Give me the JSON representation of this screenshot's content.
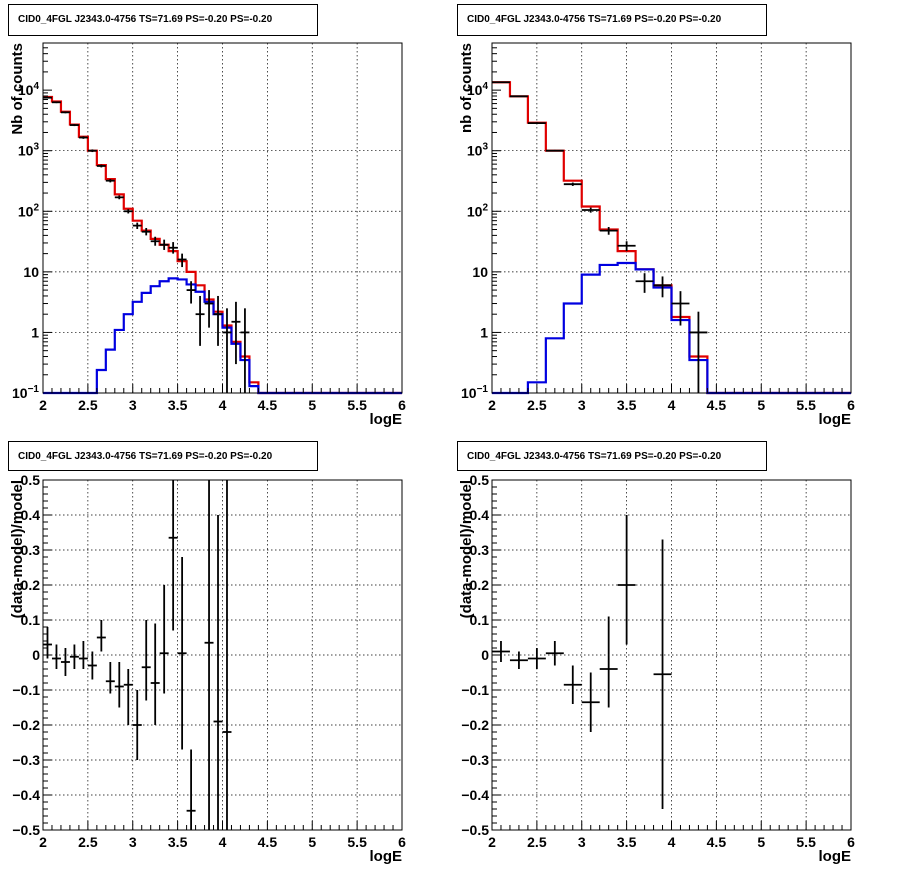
{
  "panels": [
    {
      "title": "CID0_4FGL J2343.0-4756 TS=71.69 PS=-0.20 PS=-0.20",
      "chart_data": {
        "type": "histogram-log",
        "xlabel": "logE",
        "ylabel": "Nb of counts",
        "xlim": [
          2,
          6
        ],
        "ylim": [
          0.1,
          60000
        ],
        "ylog": true,
        "grid": true,
        "x_ticks": [
          "2",
          "2.5",
          "3",
          "3.5",
          "4",
          "4.5",
          "5",
          "5.5",
          "6"
        ],
        "y_ticks": [
          {
            "value": 0.1,
            "label": "10",
            "sup": "−1"
          },
          {
            "value": 1,
            "label": "1"
          },
          {
            "value": 10,
            "label": "10"
          },
          {
            "value": 100,
            "label": "10",
            "sup": "2"
          },
          {
            "value": 1000,
            "label": "10",
            "sup": "3"
          },
          {
            "value": 10000,
            "label": "10",
            "sup": "4"
          }
        ],
        "bin_edges": [
          2.0,
          2.1,
          2.2,
          2.3,
          2.4,
          2.5,
          2.6,
          2.7,
          2.8,
          2.9,
          3.0,
          3.1,
          3.2,
          3.3,
          3.4,
          3.5,
          3.6,
          3.7,
          3.8,
          3.9,
          4.0,
          4.1,
          4.2,
          4.3,
          4.4,
          4.5,
          4.6,
          4.7,
          4.8,
          4.9,
          5.0,
          5.1,
          5.2,
          5.3,
          5.4,
          5.5,
          5.6,
          5.7,
          5.8,
          5.9,
          6.0
        ],
        "series": [
          {
            "color": "#e00000",
            "values": [
              7700,
              6500,
              4400,
              2700,
              1700,
              1000,
              580,
              340,
              190,
              110,
              70,
              48,
              35,
              28,
              22,
              15,
              10,
              6,
              3.5,
              2.2,
              1.3,
              0.7,
              0.4,
              0.15,
              0.1,
              0.1,
              0.1,
              0.1,
              0.1,
              0.1,
              0.1,
              0.1,
              0.1,
              0.1,
              0.1,
              0.1,
              0.1,
              0.1,
              0.1,
              0.1
            ]
          },
          {
            "color": "#0000e0",
            "values": [
              0.1,
              0.1,
              0.1,
              0.1,
              0.1,
              0.1,
              0.24,
              0.52,
              1.1,
              2.0,
              3.2,
              4.5,
              5.8,
              7.0,
              7.8,
              7.5,
              6.2,
              4.7,
              3.2,
              2.0,
              1.2,
              0.65,
              0.35,
              0.13,
              0.1,
              0.1,
              0.1,
              0.1,
              0.1,
              0.1,
              0.1,
              0.1,
              0.1,
              0.1,
              0.1,
              0.1,
              0.1,
              0.1,
              0.1,
              0.1
            ]
          }
        ],
        "points": [
          {
            "x": 2.05,
            "y": 7500,
            "lo": 7300,
            "hi": 7700
          },
          {
            "x": 2.15,
            "y": 6300,
            "lo": 6100,
            "hi": 6500
          },
          {
            "x": 2.25,
            "y": 4300,
            "lo": 4150,
            "hi": 4450
          },
          {
            "x": 2.35,
            "y": 2650,
            "lo": 2550,
            "hi": 2750
          },
          {
            "x": 2.45,
            "y": 1650,
            "lo": 1570,
            "hi": 1730
          },
          {
            "x": 2.55,
            "y": 1000,
            "lo": 950,
            "hi": 1050
          },
          {
            "x": 2.65,
            "y": 560,
            "lo": 530,
            "hi": 590
          },
          {
            "x": 2.75,
            "y": 320,
            "lo": 300,
            "hi": 340
          },
          {
            "x": 2.85,
            "y": 170,
            "lo": 158,
            "hi": 182
          },
          {
            "x": 2.95,
            "y": 100,
            "lo": 92,
            "hi": 108
          },
          {
            "x": 3.05,
            "y": 58,
            "lo": 51,
            "hi": 65
          },
          {
            "x": 3.15,
            "y": 46,
            "lo": 40,
            "hi": 53
          },
          {
            "x": 3.25,
            "y": 32,
            "lo": 27,
            "hi": 38
          },
          {
            "x": 3.35,
            "y": 28,
            "lo": 23,
            "hi": 34
          },
          {
            "x": 3.45,
            "y": 25,
            "lo": 20,
            "hi": 31
          },
          {
            "x": 3.55,
            "y": 16,
            "lo": 12,
            "hi": 20
          },
          {
            "x": 3.65,
            "y": 5,
            "lo": 3,
            "hi": 7
          },
          {
            "x": 3.75,
            "y": 2,
            "lo": 0.6,
            "hi": 4
          },
          {
            "x": 3.85,
            "y": 3,
            "lo": 1.2,
            "hi": 5
          },
          {
            "x": 3.95,
            "y": 2,
            "lo": 0.6,
            "hi": 4
          },
          {
            "x": 4.05,
            "y": 1,
            "lo": 0.1,
            "hi": 2.5
          },
          {
            "x": 4.15,
            "y": 1.5,
            "lo": 0.3,
            "hi": 3.2
          },
          {
            "x": 4.25,
            "y": 1,
            "lo": 0.1,
            "hi": 2.5
          }
        ]
      }
    },
    {
      "title": "CID0_4FGL J2343.0-4756 TS=71.69 PS=-0.20 PS=-0.20",
      "chart_data": {
        "type": "histogram-log",
        "xlabel": "logE",
        "ylabel": "nb of counts",
        "xlim": [
          2,
          6
        ],
        "ylim": [
          0.1,
          60000
        ],
        "ylog": true,
        "grid": true,
        "x_ticks": [
          "2",
          "2.5",
          "3",
          "3.5",
          "4",
          "4.5",
          "5",
          "5.5",
          "6"
        ],
        "y_ticks": [
          {
            "value": 0.1,
            "label": "10",
            "sup": "−1"
          },
          {
            "value": 1,
            "label": "1"
          },
          {
            "value": 10,
            "label": "10"
          },
          {
            "value": 100,
            "label": "10",
            "sup": "2"
          },
          {
            "value": 1000,
            "label": "10",
            "sup": "3"
          },
          {
            "value": 10000,
            "label": "10",
            "sup": "4"
          }
        ],
        "bin_edges": [
          2.0,
          2.2,
          2.4,
          2.6,
          2.8,
          3.0,
          3.2,
          3.4,
          3.6,
          3.8,
          4.0,
          4.2,
          4.4,
          4.6,
          4.8,
          5.0,
          5.2,
          5.4,
          5.6,
          5.8,
          6.0
        ],
        "series": [
          {
            "color": "#e00000",
            "values": [
              13500,
              7900,
              2900,
              1000,
              320,
              120,
              50,
              22,
              11,
              6,
              1.8,
              0.4,
              0.1,
              0.1,
              0.1,
              0.1,
              0.1,
              0.1,
              0.1,
              0.1
            ]
          },
          {
            "color": "#0000e0",
            "values": [
              0.1,
              0.1,
              0.15,
              0.8,
              3,
              9,
              13,
              14,
              11,
              5.5,
              1.6,
              0.35,
              0.1,
              0.1,
              0.1,
              0.1,
              0.1,
              0.1,
              0.1,
              0.1
            ]
          }
        ],
        "points": [
          {
            "x": 2.1,
            "y": 13500,
            "lo": 13300,
            "hi": 13700
          },
          {
            "x": 2.3,
            "y": 7900,
            "lo": 7750,
            "hi": 8050
          },
          {
            "x": 2.5,
            "y": 2850,
            "lo": 2750,
            "hi": 2950
          },
          {
            "x": 2.7,
            "y": 1000,
            "lo": 970,
            "hi": 1030
          },
          {
            "x": 2.9,
            "y": 280,
            "lo": 262,
            "hi": 298
          },
          {
            "x": 3.1,
            "y": 105,
            "lo": 95,
            "hi": 115
          },
          {
            "x": 3.3,
            "y": 48,
            "lo": 41,
            "hi": 55
          },
          {
            "x": 3.5,
            "y": 27,
            "lo": 22,
            "hi": 32
          },
          {
            "x": 3.7,
            "y": 7,
            "lo": 4.5,
            "hi": 9.5
          },
          {
            "x": 3.9,
            "y": 6,
            "lo": 3.8,
            "hi": 8.4
          },
          {
            "x": 4.1,
            "y": 3,
            "lo": 1.3,
            "hi": 4.8
          },
          {
            "x": 4.3,
            "y": 1,
            "lo": 0.1,
            "hi": 2.2
          }
        ]
      }
    },
    {
      "title": "CID0_4FGL J2343.0-4756 TS=71.69 PS=-0.20 PS=-0.20",
      "chart_data": {
        "type": "scatter-errorbars",
        "xlabel": "logE",
        "ylabel": "(data-model)/model",
        "xlim": [
          2,
          6
        ],
        "ylim": [
          -0.5,
          0.5
        ],
        "grid": true,
        "x_ticks": [
          "2",
          "2.5",
          "3",
          "3.5",
          "4",
          "4.5",
          "5",
          "5.5",
          "6"
        ],
        "y_ticks": [
          "−0.5",
          "−0.4",
          "−0.3",
          "−0.2",
          "−0.1",
          "0",
          "0.1",
          "0.2",
          "0.3",
          "0.4",
          "0.5"
        ],
        "points": [
          {
            "x": 2.05,
            "y": 0.03,
            "lo": -0.01,
            "hi": 0.08
          },
          {
            "x": 2.15,
            "y": -0.01,
            "lo": -0.04,
            "hi": 0.03
          },
          {
            "x": 2.25,
            "y": -0.02,
            "lo": -0.06,
            "hi": 0.02
          },
          {
            "x": 2.35,
            "y": -0.005,
            "lo": -0.04,
            "hi": 0.03
          },
          {
            "x": 2.45,
            "y": -0.01,
            "lo": -0.04,
            "hi": 0.04
          },
          {
            "x": 2.55,
            "y": -0.03,
            "lo": -0.07,
            "hi": 0.01
          },
          {
            "x": 2.65,
            "y": 0.05,
            "lo": 0.01,
            "hi": 0.1
          },
          {
            "x": 2.75,
            "y": -0.075,
            "lo": -0.11,
            "hi": -0.02
          },
          {
            "x": 2.85,
            "y": -0.09,
            "lo": -0.15,
            "hi": -0.02
          },
          {
            "x": 2.95,
            "y": -0.085,
            "lo": -0.2,
            "hi": -0.04
          },
          {
            "x": 3.05,
            "y": -0.2,
            "lo": -0.3,
            "hi": -0.1
          },
          {
            "x": 3.15,
            "y": -0.035,
            "lo": -0.13,
            "hi": 0.1
          },
          {
            "x": 3.25,
            "y": -0.08,
            "lo": -0.2,
            "hi": 0.09
          },
          {
            "x": 3.35,
            "y": 0.005,
            "lo": -0.11,
            "hi": 0.2
          },
          {
            "x": 3.45,
            "y": 0.335,
            "lo": 0.07,
            "hi": 0.5
          },
          {
            "x": 3.55,
            "y": 0.005,
            "lo": -0.27,
            "hi": 0.28
          },
          {
            "x": 3.65,
            "y": -0.445,
            "lo": -0.5,
            "hi": -0.27
          },
          {
            "x": 3.85,
            "y": 0.035,
            "lo": -0.5,
            "hi": 0.5
          },
          {
            "x": 3.95,
            "y": -0.19,
            "lo": -0.5,
            "hi": 0.4
          },
          {
            "x": 4.05,
            "y": -0.22,
            "lo": -0.5,
            "hi": 0.5
          }
        ]
      }
    },
    {
      "title": "CID0_4FGL J2343.0-4756 TS=71.69 PS=-0.20 PS=-0.20",
      "chart_data": {
        "type": "scatter-errorbars",
        "xlabel": "logE",
        "ylabel": "(data-model)/model",
        "xlim": [
          2,
          6
        ],
        "ylim": [
          -0.5,
          0.5
        ],
        "grid": true,
        "x_ticks": [
          "2",
          "2.5",
          "3",
          "3.5",
          "4",
          "4.5",
          "5",
          "5.5",
          "6"
        ],
        "y_ticks": [
          "−0.5",
          "−0.4",
          "−0.3",
          "−0.2",
          "−0.1",
          "0",
          "0.1",
          "0.2",
          "0.3",
          "0.4",
          "0.5"
        ],
        "points": [
          {
            "x": 2.1,
            "y": 0.01,
            "lo": -0.02,
            "hi": 0.04
          },
          {
            "x": 2.3,
            "y": -0.015,
            "lo": -0.04,
            "hi": 0.01
          },
          {
            "x": 2.5,
            "y": -0.01,
            "lo": -0.04,
            "hi": 0.02
          },
          {
            "x": 2.7,
            "y": 0.005,
            "lo": -0.03,
            "hi": 0.04
          },
          {
            "x": 2.9,
            "y": -0.085,
            "lo": -0.14,
            "hi": -0.03
          },
          {
            "x": 3.1,
            "y": -0.135,
            "lo": -0.22,
            "hi": -0.05
          },
          {
            "x": 3.3,
            "y": -0.04,
            "lo": -0.15,
            "hi": 0.11
          },
          {
            "x": 3.5,
            "y": 0.2,
            "lo": 0.03,
            "hi": 0.4
          },
          {
            "x": 3.9,
            "y": -0.055,
            "lo": -0.44,
            "hi": 0.33
          }
        ]
      }
    }
  ]
}
